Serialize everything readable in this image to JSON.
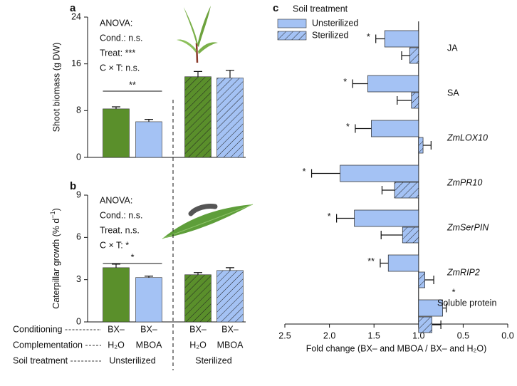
{
  "chart_data": [
    {
      "type": "bar",
      "panel": "a",
      "ylabel": "Shoot biomass (g DW)",
      "ylim": [
        0,
        24
      ],
      "yticks": [
        0,
        8,
        16,
        24
      ],
      "values": [
        8.3,
        6.1,
        13.8,
        13.6
      ],
      "errors": [
        0.35,
        0.4,
        0.9,
        1.3
      ],
      "colors": [
        "#5a8f2b",
        "#a4c2f4",
        "#5a8f2b",
        "#a4c2f4"
      ],
      "hatched": [
        false,
        false,
        true,
        true
      ],
      "annotations": [
        "ANOVA:",
        "Cond.: n.s.",
        "Treat: ***",
        "C × T: n.s."
      ],
      "significance": "**"
    },
    {
      "type": "bar",
      "panel": "b",
      "ylabel": {
        "text": "Caterpillar growth (% d",
        "superscript": "−1",
        "suffix": ")"
      },
      "ylim": [
        0,
        9
      ],
      "yticks": [
        0,
        3,
        6,
        9
      ],
      "values": [
        3.85,
        3.15,
        3.35,
        3.65
      ],
      "errors": [
        0.25,
        0.1,
        0.15,
        0.2
      ],
      "colors": [
        "#5a8f2b",
        "#a4c2f4",
        "#5a8f2b",
        "#a4c2f4"
      ],
      "hatched": [
        false,
        false,
        true,
        true
      ],
      "annotations": [
        "ANOVA:",
        "Cond.: n.s.",
        "Treat. n.s.",
        "C × T: *"
      ],
      "significance": "*"
    },
    {
      "type": "hbar",
      "panel": "c",
      "legend_title": "Soil treatment",
      "xlabel": "Fold change (BX– and MBOA / BX– and H₂O)",
      "xlim": [
        2.5,
        0.0
      ],
      "origin": 1,
      "xticks": [
        {
          "value": 2.5,
          "label": "2.5"
        },
        {
          "value": 2.0,
          "label": "2.0"
        },
        {
          "value": 1.5,
          "label": "1.5"
        },
        {
          "value": 1.0,
          "label": "1.0"
        },
        {
          "value": 0.5,
          "label": "0.5"
        },
        {
          "value": 0.0,
          "label": "0.0"
        }
      ],
      "categories": [
        "JA",
        "SA",
        "ZmLOX10",
        "ZmPR10",
        "ZmSerPIN",
        "ZmRIP2",
        "Soluble protein"
      ],
      "italic_categories": [
        false,
        false,
        true,
        true,
        true,
        true,
        false
      ],
      "series": [
        {
          "name": "Unsterilized",
          "color": "#a4c2f4",
          "hatched": false,
          "values": [
            1.38,
            1.57,
            1.53,
            1.88,
            1.72,
            1.34,
            0.73
          ],
          "errors": [
            0.1,
            0.17,
            0.18,
            0.32,
            0.2,
            0.09,
            0.04
          ],
          "significance": [
            "*",
            "*",
            "*",
            "*",
            "*",
            "**",
            "*"
          ]
        },
        {
          "name": "Sterilized",
          "color": "#a4c2f4",
          "hatched": true,
          "values": [
            1.1,
            1.08,
            0.95,
            1.27,
            1.18,
            0.93,
            0.85
          ],
          "errors": [
            0.09,
            0.16,
            0.09,
            0.14,
            0.24,
            0.1,
            0.1
          ]
        }
      ]
    }
  ],
  "table": {
    "rows": [
      {
        "label": "Conditioning",
        "cells": [
          "BX–",
          "BX–",
          "BX–",
          "BX–"
        ]
      },
      {
        "label": "Complementation",
        "cells": [
          "H₂O",
          "MBOA",
          "H₂O",
          "MBOA"
        ]
      },
      {
        "label": "Soil treatment",
        "cells": [
          "Unsterilized",
          "Sterilized"
        ]
      }
    ]
  }
}
